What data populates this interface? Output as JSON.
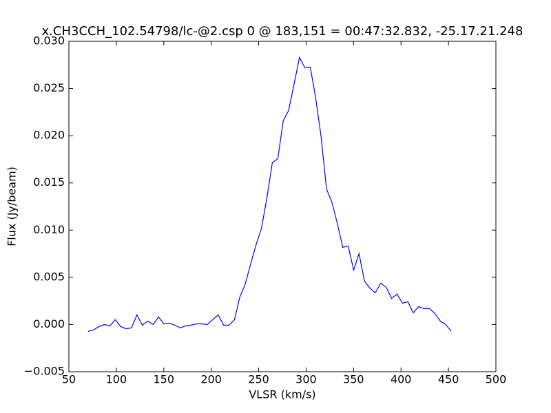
{
  "chart_data": {
    "type": "line",
    "title": "x.CH3CCH_102.54798/lc-@2.csp 0 @ 183,151 = 00:47:32.832, -25.17.21.248",
    "x_label": "VLSR (km/s)",
    "y_label": "Flux (Jy/beam)",
    "x": [
      70.3,
      76.0,
      81.7,
      87.4,
      93.1,
      98.9,
      104.6,
      110.3,
      116.0,
      121.7,
      127.4,
      133.1,
      138.8,
      144.5,
      150.2,
      156.0,
      161.7,
      167.4,
      173.1,
      178.8,
      184.5,
      190.2,
      195.9,
      201.6,
      207.3,
      213.1,
      218.8,
      224.5,
      230.2,
      235.9,
      241.6,
      247.3,
      253.0,
      258.7,
      264.4,
      270.2,
      275.9,
      281.6,
      287.3,
      293.0,
      298.7,
      304.4,
      310.1,
      315.8,
      321.5,
      327.3,
      333.0,
      338.7,
      344.4,
      350.1,
      355.8,
      361.5,
      367.2,
      372.9,
      378.6,
      384.4,
      390.1,
      395.8,
      401.5,
      407.2,
      412.9,
      418.6,
      424.3,
      430.0,
      435.7,
      441.5,
      447.2,
      452.9
    ],
    "values": [
      -0.00073,
      -0.00058,
      -0.00022,
      0,
      -0.00015,
      0.00051,
      -0.00022,
      -0.00044,
      -0.00036,
      0.00102,
      -7e-05,
      0.00036,
      0,
      0.0008,
      7e-05,
      0.00015,
      -7e-05,
      -0.00036,
      -0.00015,
      -7e-05,
      7e-05,
      7e-05,
      0,
      0.00051,
      0.00102,
      -7e-05,
      -7e-05,
      0.00051,
      0.00292,
      0.0043,
      0.00642,
      0.00846,
      0.01021,
      0.01342,
      0.01714,
      0.01757,
      0.02158,
      0.02268,
      0.02545,
      0.02829,
      0.0272,
      0.02727,
      0.02399,
      0.01991,
      0.01436,
      0.01291,
      0.01065,
      0.00817,
      0.00831,
      0.00576,
      0.00751,
      0.00459,
      0.00386,
      0.00335,
      0.00438,
      0.00394,
      0.00277,
      0.00321,
      0.00226,
      0.00241,
      0.00124,
      0.0019,
      0.00168,
      0.00168,
      0.00117,
      0.00036,
      0,
      -0.00073
    ],
    "color": "#0000ff",
    "xlim": [
      50,
      500
    ],
    "xticks": [
      50,
      100,
      150,
      200,
      250,
      300,
      350,
      400,
      450,
      500
    ],
    "ylim": [
      -0.005,
      0.03
    ],
    "yticks": [
      {
        "value": -0.005,
        "label": "−0.005"
      },
      {
        "value": 0,
        "label": "0.000"
      },
      {
        "value": 0.005,
        "label": "0.005"
      },
      {
        "value": 0.01,
        "label": "0.010"
      },
      {
        "value": 0.015,
        "label": "0.015"
      },
      {
        "value": 0.02,
        "label": "0.020"
      },
      {
        "value": 0.025,
        "label": "0.025"
      },
      {
        "value": 0.03,
        "label": "0.030"
      }
    ]
  }
}
